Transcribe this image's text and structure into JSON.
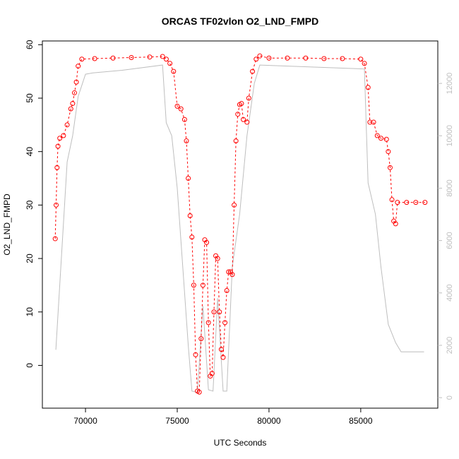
{
  "chart_data": {
    "type": "line",
    "title": "ORCAS TF02vlon O2_LND_FMPD",
    "xlabel": "UTC Seconds",
    "ylabel": "O2_LND_FMPD",
    "xlim": [
      67650,
      89200
    ],
    "xticks": [
      70000,
      75000,
      80000,
      85000
    ],
    "ylim": [
      -8,
      60.7
    ],
    "yticks": [
      0,
      10,
      20,
      30,
      40,
      50,
      60
    ],
    "y2lim": [
      -400,
      13620
    ],
    "y2ticks": [
      0,
      2000,
      4000,
      6000,
      8000,
      10000,
      12000
    ],
    "series": [
      {
        "name": "O2_LND_FMPD",
        "color": "#ff0000",
        "x": [
          68350,
          68400,
          68450,
          68500,
          68600,
          68800,
          69000,
          69200,
          69300,
          69400,
          69500,
          69600,
          69800,
          70500,
          71500,
          72500,
          73500,
          74200,
          74400,
          74600,
          74800,
          75000,
          75200,
          75400,
          75500,
          75600,
          75700,
          75800,
          75900,
          76000,
          76100,
          76200,
          76300,
          76400,
          76500,
          76600,
          76700,
          76800,
          76900,
          77000,
          77100,
          77200,
          77300,
          77400,
          77500,
          77600,
          77700,
          77800,
          77900,
          78000,
          78100,
          78200,
          78300,
          78400,
          78500,
          78600,
          78800,
          78900,
          79100,
          79300,
          79500,
          80000,
          81000,
          82000,
          83000,
          84000,
          85000,
          85200,
          85400,
          85500,
          85700,
          85900,
          86100,
          86400,
          86500,
          86600,
          86700,
          86800,
          86900,
          87000,
          87500,
          88000,
          88500
        ],
        "values": [
          23.7,
          30,
          37,
          41,
          42.5,
          43,
          45,
          48,
          49,
          51,
          53,
          56,
          57.3,
          57.4,
          57.5,
          57.6,
          57.7,
          57.8,
          57.3,
          56.5,
          55,
          48.5,
          48,
          46,
          42,
          35,
          28,
          24,
          15,
          2,
          -4.8,
          -5,
          5,
          15,
          23.5,
          23,
          8,
          -2,
          -1.5,
          10,
          20.5,
          20,
          10,
          3,
          1.5,
          8,
          14,
          17.5,
          17.5,
          17,
          30,
          42,
          47,
          48.8,
          49,
          46,
          45.5,
          50,
          55,
          57.3,
          57.9,
          57.5,
          57.5,
          57.5,
          57.4,
          57.4,
          57.3,
          56.5,
          52,
          45.5,
          45.5,
          43,
          42.5,
          42.3,
          40,
          37,
          31,
          27,
          26.5,
          30.5,
          30.5,
          30.5,
          30.5
        ]
      },
      {
        "color": "#bebebe",
        "axis": "y2",
        "x": [
          68385,
          68700,
          69000,
          69300,
          69600,
          70000,
          70400,
          72000,
          74200,
          74400,
          74700,
          75000,
          75300,
          75600,
          75800,
          76100,
          76400,
          76700,
          76950,
          77200,
          77500,
          77700,
          78000,
          78400,
          78800,
          79200,
          79500,
          85200,
          85400,
          85800,
          86100,
          86500,
          86900,
          87200,
          88450
        ],
        "values": [
          1830,
          5500,
          9000,
          10000,
          11500,
          12350,
          12400,
          12500,
          12700,
          10500,
          10000,
          8000,
          5000,
          2000,
          250,
          200,
          3500,
          300,
          250,
          3800,
          250,
          250,
          5000,
          7000,
          10000,
          12000,
          12700,
          12550,
          8200,
          7000,
          5000,
          2800,
          2100,
          1750,
          1750
        ]
      }
    ]
  }
}
